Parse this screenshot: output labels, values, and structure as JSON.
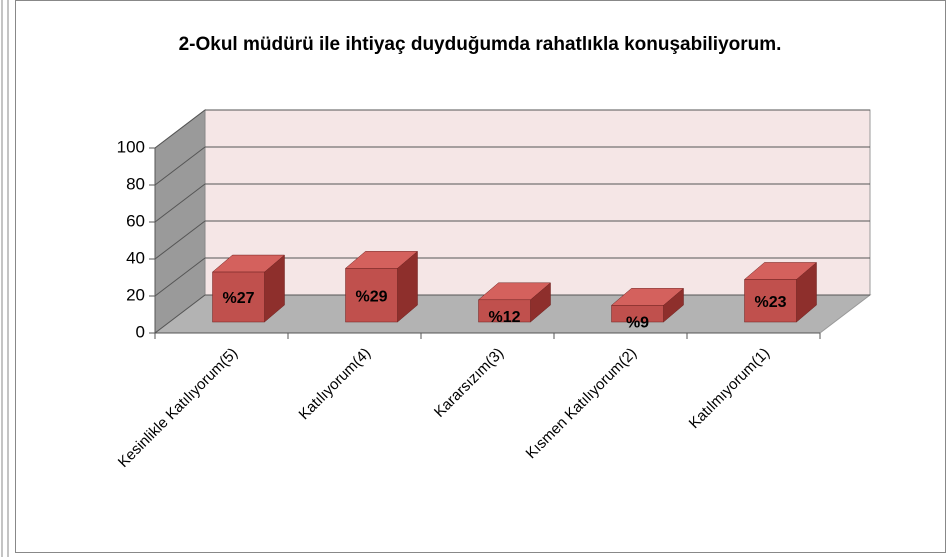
{
  "chart_data": {
    "type": "bar3d",
    "title": "2-Okul müdürü ile ihtiyaç duyduğumda rahatlıkla konuşabiliyorum.",
    "categories": [
      "Kesinlikle Katılıyorum(5)",
      "Katılıyorum(4)",
      "Kararsızım(3)",
      "Kısmen Katılıyorum(2)",
      "Katılmıyorum(1)"
    ],
    "values": [
      27,
      29,
      12,
      9,
      23
    ],
    "value_labels": [
      "%27",
      "%29",
      "%12",
      "%9",
      "%23"
    ],
    "color": "#c0504d",
    "ylim": [
      0,
      100
    ],
    "yticks": [
      0,
      20,
      40,
      60,
      80,
      100
    ],
    "grid": true
  }
}
